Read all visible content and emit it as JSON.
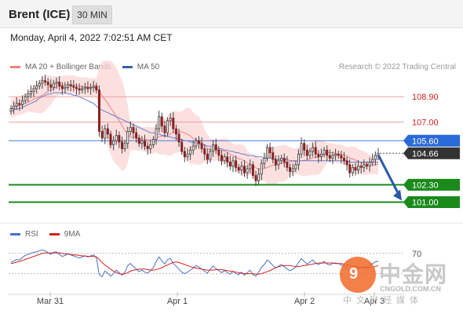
{
  "header": {
    "instrument": "Brent (ICE)",
    "timeframe": "30 MIN"
  },
  "datetime": "Monday, April 4, 2022 7:02:51 AM CET",
  "legend": {
    "ma20": {
      "label": "MA 20 + Bollinger Bands",
      "color": "#f08080"
    },
    "ma50": {
      "label": "MA 50",
      "color": "#3a5ea8"
    }
  },
  "credit": "Research © 2022 Trading Central",
  "rsi_legend": {
    "rsi": {
      "label": "RSI",
      "color": "#4a72c8"
    },
    "ma9": {
      "label": "9MA",
      "color": "#d42020"
    }
  },
  "watermark": {
    "logo_text": "9",
    "cn": "中金网",
    "url": "CNGOLD.COM.CN",
    "tag": "中文财经媒体"
  },
  "chart_data": {
    "type": "candlestick",
    "ylim": [
      99.5,
      110.5
    ],
    "x_ticks": [
      "Mar 31",
      "Apr 1",
      "Apr 2",
      "Apr 3"
    ],
    "levels": [
      {
        "label": "108.90",
        "value": 108.9,
        "kind": "resistance",
        "color": "#e05050",
        "label_color": "#d42020",
        "line_color": "#f0a0a0"
      },
      {
        "label": "107.00",
        "value": 107.0,
        "kind": "resistance",
        "color": "#e05050",
        "label_color": "#d42020",
        "line_color": "#f0a0a0"
      },
      {
        "label": "105.60",
        "value": 105.6,
        "kind": "pivot",
        "color": "#2a6ad8",
        "label_color": "#ffffff",
        "line_color": "#4a7ad8"
      },
      {
        "label": "104.66",
        "value": 104.66,
        "kind": "last",
        "color": "#333333",
        "label_color": "#ffffff",
        "line_color": "#555555"
      },
      {
        "label": "102.30",
        "value": 102.3,
        "kind": "support",
        "color": "#1a8a1a",
        "label_color": "#ffffff",
        "line_color": "#1a8a1a"
      },
      {
        "label": "101.00",
        "value": 101.0,
        "kind": "support",
        "color": "#1a8a1a",
        "label_color": "#ffffff",
        "line_color": "#1a8a1a"
      }
    ],
    "close": [
      108.0,
      108.2,
      108.4,
      108.3,
      108.6,
      108.9,
      109.1,
      109.3,
      109.5,
      109.7,
      109.9,
      110.1,
      110.0,
      109.8,
      109.6,
      109.9,
      110.0,
      109.7,
      109.5,
      109.6,
      109.8,
      109.7,
      109.6,
      109.5,
      109.4,
      109.5,
      109.6,
      109.5,
      109.6,
      109.7,
      109.4,
      106.3,
      105.8,
      106.5,
      106.1,
      105.3,
      105.6,
      106.0,
      105.5,
      105.0,
      105.4,
      106.3,
      106.6,
      106.2,
      105.8,
      105.4,
      105.6,
      105.2,
      105.0,
      105.3,
      105.7,
      106.5,
      107.4,
      106.7,
      106.2,
      107.1,
      107.3,
      106.5,
      106.1,
      105.5,
      104.8,
      104.4,
      104.6,
      104.9,
      105.2,
      105.6,
      105.4,
      105.0,
      104.6,
      104.2,
      104.8,
      105.3,
      104.9,
      104.5,
      104.1,
      104.4,
      104.0,
      103.7,
      104.1,
      103.6,
      103.4,
      103.7,
      103.2,
      103.5,
      103.8,
      103.0,
      102.6,
      103.1,
      103.9,
      104.3,
      105.1,
      104.7,
      104.2,
      103.8,
      104.1,
      104.3,
      104.0,
      103.6,
      103.3,
      103.5,
      103.8,
      104.6,
      105.4,
      104.9,
      104.5,
      104.8,
      105.1,
      104.6,
      104.4,
      104.6,
      104.9,
      104.5,
      104.3,
      104.5,
      104.6,
      104.5,
      104.3,
      104.1,
      103.8,
      103.2,
      103.6,
      103.4,
      103.7,
      103.6,
      103.8,
      103.7,
      104.0,
      104.2,
      104.5,
      104.66
    ],
    "ma50": [
      107.8,
      107.9,
      108.0,
      108.0,
      108.1,
      108.2,
      108.3,
      108.4,
      108.5,
      108.6,
      108.8,
      108.9,
      109.0,
      109.1,
      109.1,
      109.2,
      109.2,
      109.2,
      109.2,
      109.2,
      109.1,
      109.1,
      109.0,
      109.0,
      108.9,
      108.8,
      108.7,
      108.6,
      108.5,
      108.4,
      108.2,
      108.0,
      107.9,
      107.8,
      107.7,
      107.6,
      107.5,
      107.4,
      107.3,
      107.2,
      107.1,
      107.0,
      106.9,
      106.8,
      106.7,
      106.6,
      106.5,
      106.4,
      106.3,
      106.2,
      106.2,
      106.1,
      106.1,
      106.0,
      106.0,
      105.9,
      105.9,
      105.8,
      105.8,
      105.7,
      105.7,
      105.6,
      105.6,
      105.5,
      105.5,
      105.4,
      105.4,
      105.3,
      105.3,
      105.2,
      105.2,
      105.1,
      105.1,
      105.0,
      105.0,
      104.9,
      104.9,
      104.8,
      104.8,
      104.7,
      104.7,
      104.6,
      104.6,
      104.5,
      104.5,
      104.5,
      104.4,
      104.4,
      104.4,
      104.3,
      104.3,
      104.3,
      104.3,
      104.2,
      104.2,
      104.2,
      104.2,
      104.2,
      104.1,
      104.1,
      104.1,
      104.1,
      104.1,
      104.1,
      104.1,
      104.1,
      104.1,
      104.1,
      104.1,
      104.1,
      104.1,
      104.1,
      104.1,
      104.1,
      104.1,
      104.1,
      104.1,
      104.1,
      104.1,
      104.0,
      104.0,
      104.0,
      104.0,
      104.0,
      104.0,
      104.0,
      104.0,
      104.0,
      104.0,
      104.0
    ],
    "rsi_levels": [
      {
        "label": "70",
        "value": 70
      }
    ],
    "rsi": [
      52,
      55,
      58,
      57,
      62,
      66,
      68,
      70,
      72,
      73,
      75,
      77,
      75,
      71,
      68,
      72,
      73,
      68,
      64,
      66,
      69,
      67,
      65,
      63,
      61,
      63,
      65,
      63,
      65,
      67,
      61,
      28,
      24,
      35,
      31,
      25,
      30,
      37,
      32,
      27,
      33,
      46,
      50,
      44,
      39,
      34,
      37,
      33,
      31,
      36,
      42,
      54,
      63,
      55,
      49,
      58,
      60,
      50,
      45,
      39,
      33,
      30,
      33,
      37,
      41,
      46,
      43,
      39,
      35,
      31,
      39,
      45,
      40,
      36,
      32,
      36,
      32,
      29,
      35,
      30,
      28,
      33,
      27,
      32,
      37,
      28,
      25,
      33,
      43,
      48,
      57,
      52,
      46,
      41,
      45,
      48,
      44,
      39,
      36,
      39,
      43,
      52,
      60,
      54,
      49,
      53,
      57,
      51,
      48,
      51,
      54,
      49,
      47,
      50,
      51,
      50,
      47,
      45,
      41,
      34,
      40,
      37,
      42,
      41,
      44,
      43,
      47,
      50,
      53,
      55
    ],
    "rsi_ma9": [
      50,
      51,
      53,
      54,
      56,
      58,
      60,
      62,
      64,
      66,
      68,
      70,
      71,
      71,
      71,
      71,
      71,
      71,
      70,
      69,
      69,
      68,
      67,
      67,
      66,
      65,
      65,
      64,
      64,
      64,
      63,
      58,
      52,
      47,
      43,
      39,
      35,
      32,
      30,
      29,
      30,
      32,
      35,
      37,
      38,
      39,
      39,
      39,
      38,
      37,
      37,
      38,
      40,
      42,
      45,
      47,
      50,
      52,
      53,
      52,
      50,
      48,
      46,
      44,
      42,
      41,
      40,
      39,
      38,
      37,
      37,
      37,
      38,
      38,
      38,
      37,
      36,
      35,
      34,
      33,
      32,
      31,
      30,
      30,
      30,
      30,
      29,
      29,
      30,
      32,
      34,
      36,
      39,
      42,
      44,
      45,
      46,
      46,
      46,
      45,
      44,
      44,
      45,
      46,
      47,
      48,
      49,
      50,
      51,
      51,
      51,
      51,
      51,
      51,
      50,
      50,
      50,
      49,
      48,
      46,
      45,
      44,
      43,
      42,
      42,
      41,
      42,
      43,
      44,
      46
    ]
  }
}
